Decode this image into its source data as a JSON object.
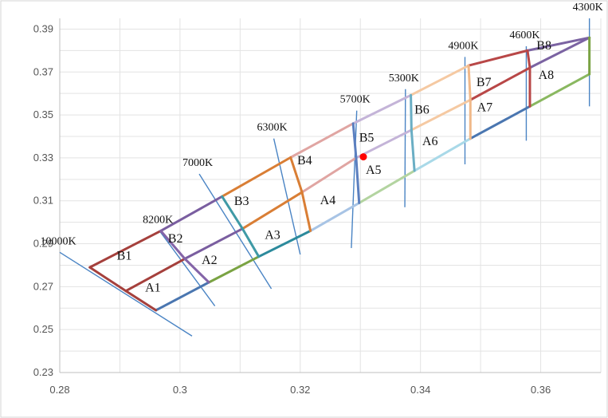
{
  "chart_data": {
    "type": "line",
    "title": "",
    "xlabel": "",
    "ylabel": "",
    "xlim": [
      0.28,
      0.37
    ],
    "ylim": [
      0.23,
      0.395
    ],
    "x_ticks": [
      0.28,
      0.3,
      0.32,
      0.34,
      0.36
    ],
    "x_tick_labels": [
      "0.28",
      "0.3",
      "0.32",
      "0.34",
      "0.36"
    ],
    "y_ticks": [
      0.23,
      0.25,
      0.27,
      0.29,
      0.31,
      0.33,
      0.35,
      0.37,
      0.39
    ],
    "y_tick_labels": [
      "0.23",
      "0.25",
      "0.27",
      "0.29",
      "0.31",
      "0.33",
      "0.35",
      "0.37",
      "0.39"
    ],
    "grid": true,
    "legend": "none",
    "boundary_x": [
      0.285,
      0.291,
      0.296,
      0.3008,
      0.3048,
      0.3104,
      0.3131,
      0.3182,
      0.3203,
      0.3285,
      0.3293,
      0.3375,
      0.3385,
      0.3474,
      0.3483,
      0.3576,
      0.3582,
      0.3681
    ],
    "upper_line": [
      [
        0.285,
        0.279
      ],
      [
        0.2968,
        0.296
      ],
      [
        0.307,
        0.312
      ],
      [
        0.3184,
        0.3302
      ],
      [
        0.3288,
        0.346
      ],
      [
        0.3384,
        0.3592
      ],
      [
        0.348,
        0.373
      ],
      [
        0.3578,
        0.38
      ],
      [
        0.3681,
        0.386
      ]
    ],
    "middle_line": [
      [
        0.291,
        0.268
      ],
      [
        0.3008,
        0.283
      ],
      [
        0.3104,
        0.297
      ],
      [
        0.3203,
        0.314
      ],
      [
        0.3293,
        0.33
      ],
      [
        0.3385,
        0.343
      ],
      [
        0.3483,
        0.357
      ],
      [
        0.3582,
        0.372
      ],
      [
        0.3681,
        0.386
      ]
    ],
    "lower_line": [
      [
        0.296,
        0.259
      ],
      [
        0.3048,
        0.272
      ],
      [
        0.3131,
        0.284
      ],
      [
        0.3217,
        0.296
      ],
      [
        0.3298,
        0.309
      ],
      [
        0.339,
        0.324
      ],
      [
        0.3483,
        0.339
      ],
      [
        0.3582,
        0.354
      ],
      [
        0.3681,
        0.369
      ]
    ],
    "cct_isolines": [
      {
        "label": "10000K",
        "x": [
          0.28,
          0.302
        ],
        "y": [
          0.286,
          0.247
        ]
      },
      {
        "label": "8200K",
        "x": [
          0.2966,
          0.3058
        ],
        "y": [
          0.296,
          0.261
        ]
      },
      {
        "label": "7000K",
        "x": [
          0.3032,
          0.3152
        ],
        "y": [
          0.3225,
          0.269
        ]
      },
      {
        "label": "6300K",
        "x": [
          0.3156,
          0.32
        ],
        "y": [
          0.339,
          0.285
        ]
      },
      {
        "label": "5700K",
        "x": [
          0.3294,
          0.3285
        ],
        "y": [
          0.352,
          0.288
        ]
      },
      {
        "label": "5300K",
        "x": [
          0.3375,
          0.3374
        ],
        "y": [
          0.362,
          0.307
        ]
      },
      {
        "label": "4900K",
        "x": [
          0.3474,
          0.3474
        ],
        "y": [
          0.377,
          0.327
        ]
      },
      {
        "label": "4600K",
        "x": [
          0.3576,
          0.3576
        ],
        "y": [
          0.382,
          0.338
        ]
      },
      {
        "label": "4300K",
        "x": [
          0.3681,
          0.3681
        ],
        "y": [
          0.395,
          0.354
        ]
      }
    ],
    "bins_upper": [
      "B1",
      "B2",
      "B3",
      "B4",
      "B5",
      "B6",
      "B7",
      "B8"
    ],
    "bins_lower": [
      "A1",
      "A2",
      "A3",
      "A4",
      "A5",
      "A6",
      "A7",
      "A8"
    ],
    "bin_label_positions": {
      "B": [
        [
          0.2895,
          0.2825
        ],
        [
          0.298,
          0.2905
        ],
        [
          0.309,
          0.308
        ],
        [
          0.3195,
          0.327
        ],
        [
          0.3298,
          0.3375
        ],
        [
          0.339,
          0.3505
        ],
        [
          0.3493,
          0.3635
        ],
        [
          0.3593,
          0.3805
        ]
      ],
      "A": [
        [
          0.2942,
          0.2677
        ],
        [
          0.3036,
          0.2805
        ],
        [
          0.3141,
          0.2922
        ],
        [
          0.3233,
          0.3085
        ],
        [
          0.3309,
          0.3225
        ],
        [
          0.3403,
          0.336
        ],
        [
          0.3494,
          0.3517
        ],
        [
          0.3596,
          0.3667
        ]
      ]
    },
    "segment_colors": [
      "#a5403c",
      "#7a5ea0",
      "#d97e35",
      "#e0a5a2",
      "#c4b4d8",
      "#f5c9a2",
      "#b84747",
      "#7b63a2"
    ],
    "lower_segment_colors": [
      "#4a76b0",
      "#7aa343",
      "#2c8a9c",
      "#a8c4e5",
      "#b3d4a0",
      "#a9d9e8",
      "#4a76b0",
      "#8ab860"
    ],
    "point": {
      "x": 0.3305,
      "y": 0.3305,
      "color": "#ff0000"
    }
  }
}
